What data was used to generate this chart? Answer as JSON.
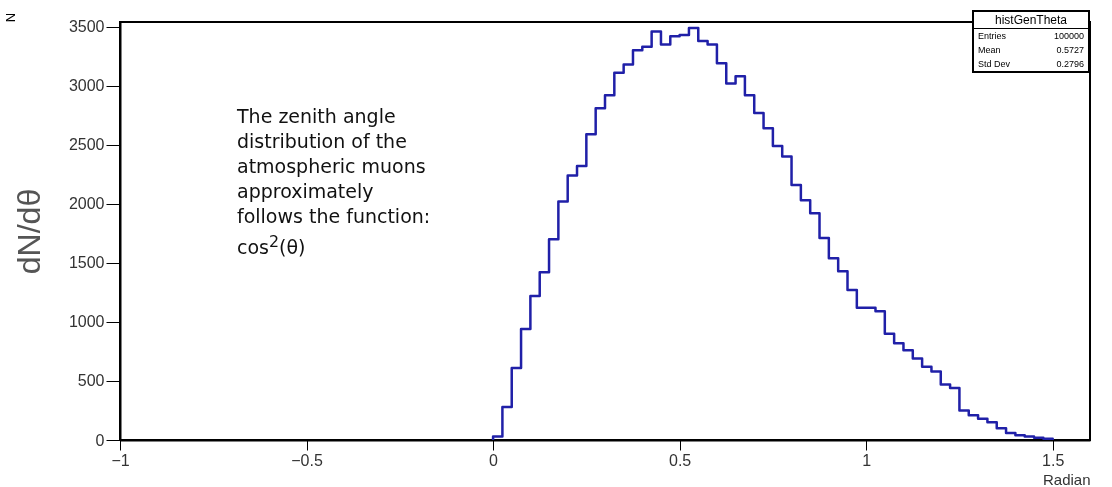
{
  "chart_data": {
    "type": "histogram",
    "xlabel": "Radian",
    "ylabel": "dN/dθ",
    "annotations": [
      "N",
      "The zenith angle distribution of the atmospheric muons approximately follows the function: cos$^{2}$(θ)",
      "histGenTheta",
      "Entries 100000",
      "Mean 0.5727",
      "Std Dev 0.2796"
    ],
    "bins": [
      0,
      0.025,
      0.05,
      0.075,
      0.1,
      0.125,
      0.15,
      0.175,
      0.2,
      0.225,
      0.25,
      0.275,
      0.3,
      0.325,
      0.35,
      0.375,
      0.4,
      0.425,
      0.45,
      0.475,
      0.5,
      0.525,
      0.55,
      0.575,
      0.6,
      0.625,
      0.65,
      0.675,
      0.7,
      0.725,
      0.75,
      0.775,
      0.8,
      0.825,
      0.85,
      0.875,
      0.9,
      0.925,
      0.95,
      0.975,
      1,
      1.025,
      1.05,
      1.075,
      1.1,
      1.125,
      1.15,
      1.175,
      1.2,
      1.225,
      1.25,
      1.275,
      1.3,
      1.325,
      1.35,
      1.375,
      1.4,
      1.425,
      1.45,
      1.475,
      1.5
    ],
    "values": [
      30,
      280,
      610,
      940,
      1220,
      1420,
      1700,
      2020,
      2240,
      2320,
      2590,
      2810,
      2920,
      3110,
      3180,
      3300,
      3330,
      3460,
      3350,
      3420,
      3430,
      3490,
      3380,
      3350,
      3190,
      3020,
      3080,
      2920,
      2770,
      2640,
      2490,
      2400,
      2160,
      2030,
      1920,
      1710,
      1540,
      1430,
      1270,
      1120,
      1120,
      1090,
      900,
      820,
      760,
      690,
      620,
      580,
      470,
      440,
      250,
      210,
      180,
      150,
      100,
      60,
      40,
      30,
      20,
      10
    ],
    "color": "#2020a8",
    "xlim": [
      -1,
      1.6
    ],
    "ylim": [
      0,
      3540
    ],
    "xticks": [
      -1,
      -0.5,
      0,
      0.5,
      1,
      1.5
    ],
    "yticks": [
      0,
      500,
      1000,
      1500,
      2000,
      2500,
      3000,
      3500
    ],
    "grid": false
  }
}
